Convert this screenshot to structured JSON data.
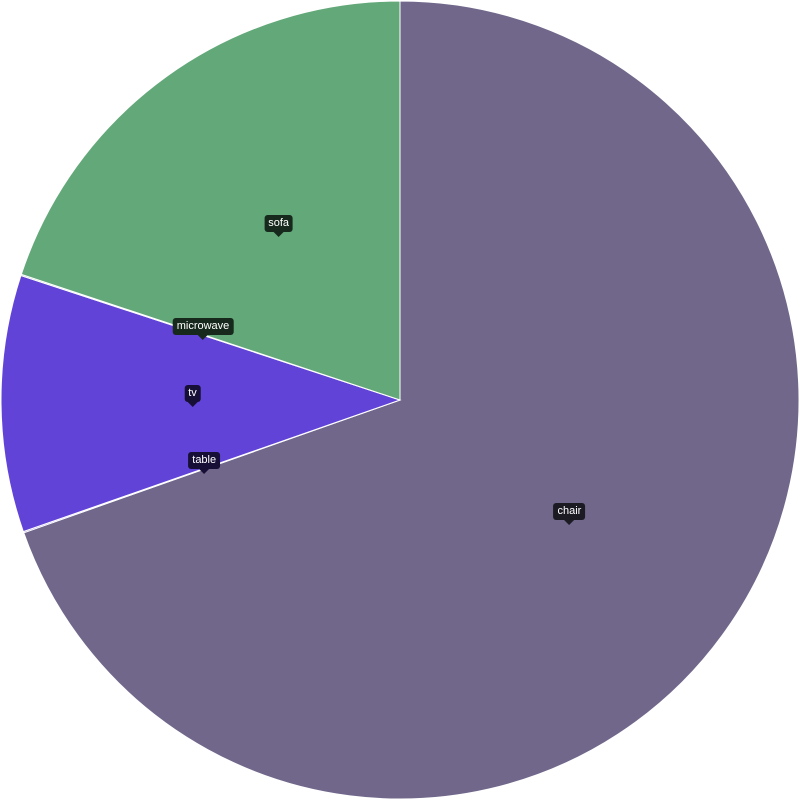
{
  "chart_data": {
    "type": "pie",
    "title": "",
    "start_angle_deg": 0,
    "direction": "clockwise",
    "legend": "none",
    "labels": [
      {
        "category": "chair",
        "values_note": ""
      },
      {
        "category": "table",
        "values_note": ""
      }
    ],
    "slices": [
      {
        "label": "chair",
        "value": 69.6,
        "color": "#71678b",
        "tooltip_bg": "#1c1a23"
      },
      {
        "label": "table",
        "value": 0.05,
        "color": "#6143d8",
        "tooltip_bg": "#180f36"
      },
      {
        "label": "tv",
        "value": 10.4,
        "color": "#6143d8",
        "tooltip_bg": "#180f36"
      },
      {
        "label": "microwave",
        "value": 0.05,
        "color": "#62a878",
        "tooltip_bg": "#17291d"
      },
      {
        "label": "sofa",
        "value": 19.9,
        "color": "#62a878",
        "tooltip_bg": "#17291d"
      }
    ]
  }
}
